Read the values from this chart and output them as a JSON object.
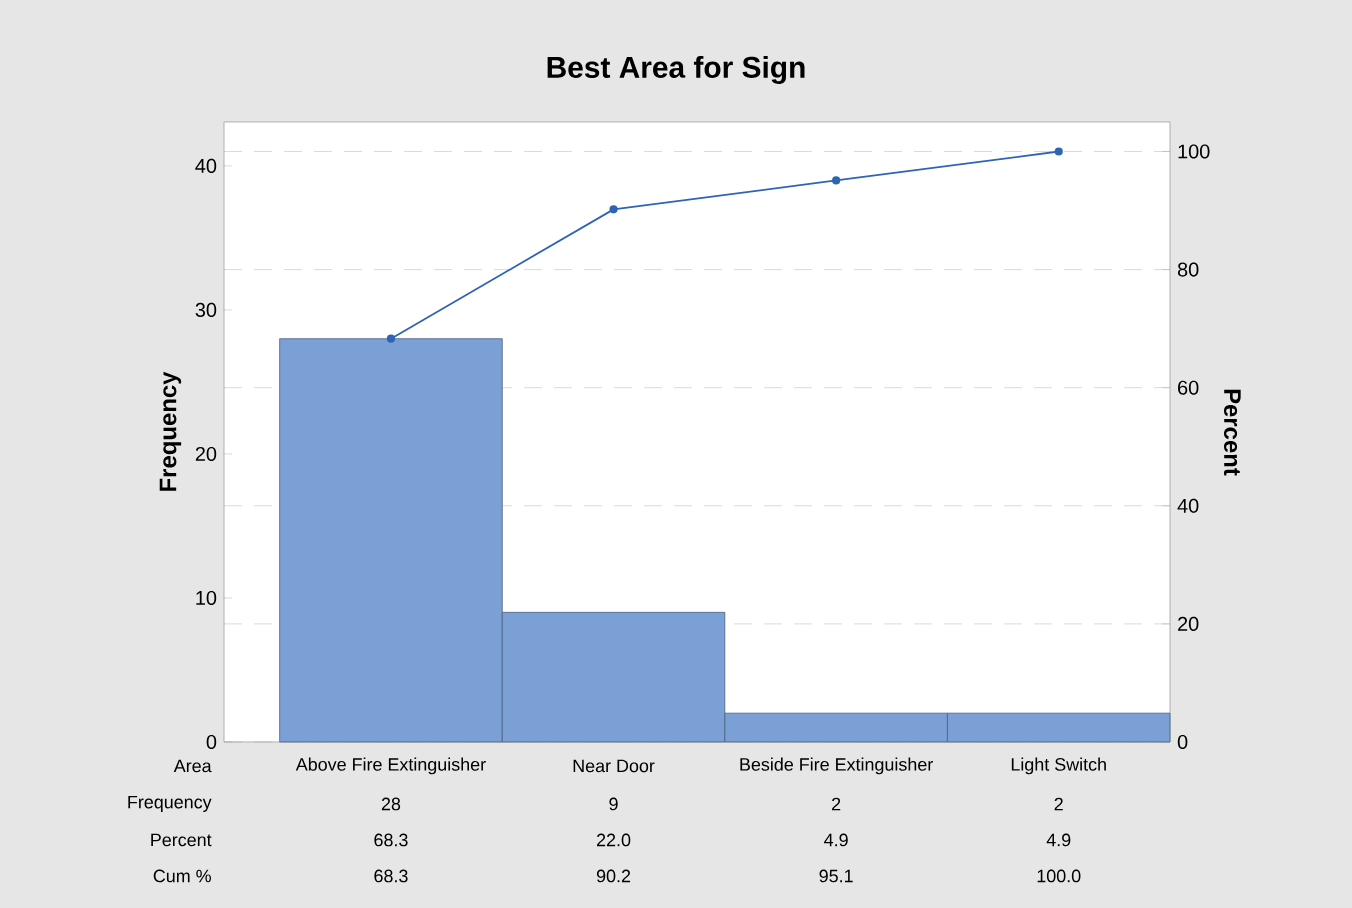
{
  "chart_data": {
    "type": "bar",
    "title": "Best Area for Sign",
    "xlabel": "Area",
    "ylabel": "Frequency",
    "y2label": "Percent",
    "categories": [
      "Above Fire Extinguisher",
      "Near Door",
      "Beside Fire Extinguisher",
      "Light Switch"
    ],
    "series": [
      {
        "color": "#7ba0d6",
        "values": [
          28,
          9,
          2,
          2
        ]
      },
      {
        "type": "line",
        "axis": "y2",
        "color": "#2e64b4",
        "marker": "circle",
        "values": [
          68.3,
          90.2,
          95.1,
          100
        ],
        "value_labels": [
          "68.3",
          "90.2",
          "95.1",
          "100.0"
        ]
      }
    ],
    "annotations": [
      "Frequency",
      "Percent",
      "68.3",
      "22.0",
      "4.9",
      "4.9",
      "Cum %"
    ],
    "data_labels": true,
    "ylim": [
      0,
      43.05
    ],
    "yticks": [
      0,
      10,
      20,
      30,
      40
    ],
    "y2lim": [
      0,
      105
    ],
    "y2ticks": [
      0,
      20,
      40,
      60,
      80,
      100
    ],
    "grid": "y2"
  }
}
